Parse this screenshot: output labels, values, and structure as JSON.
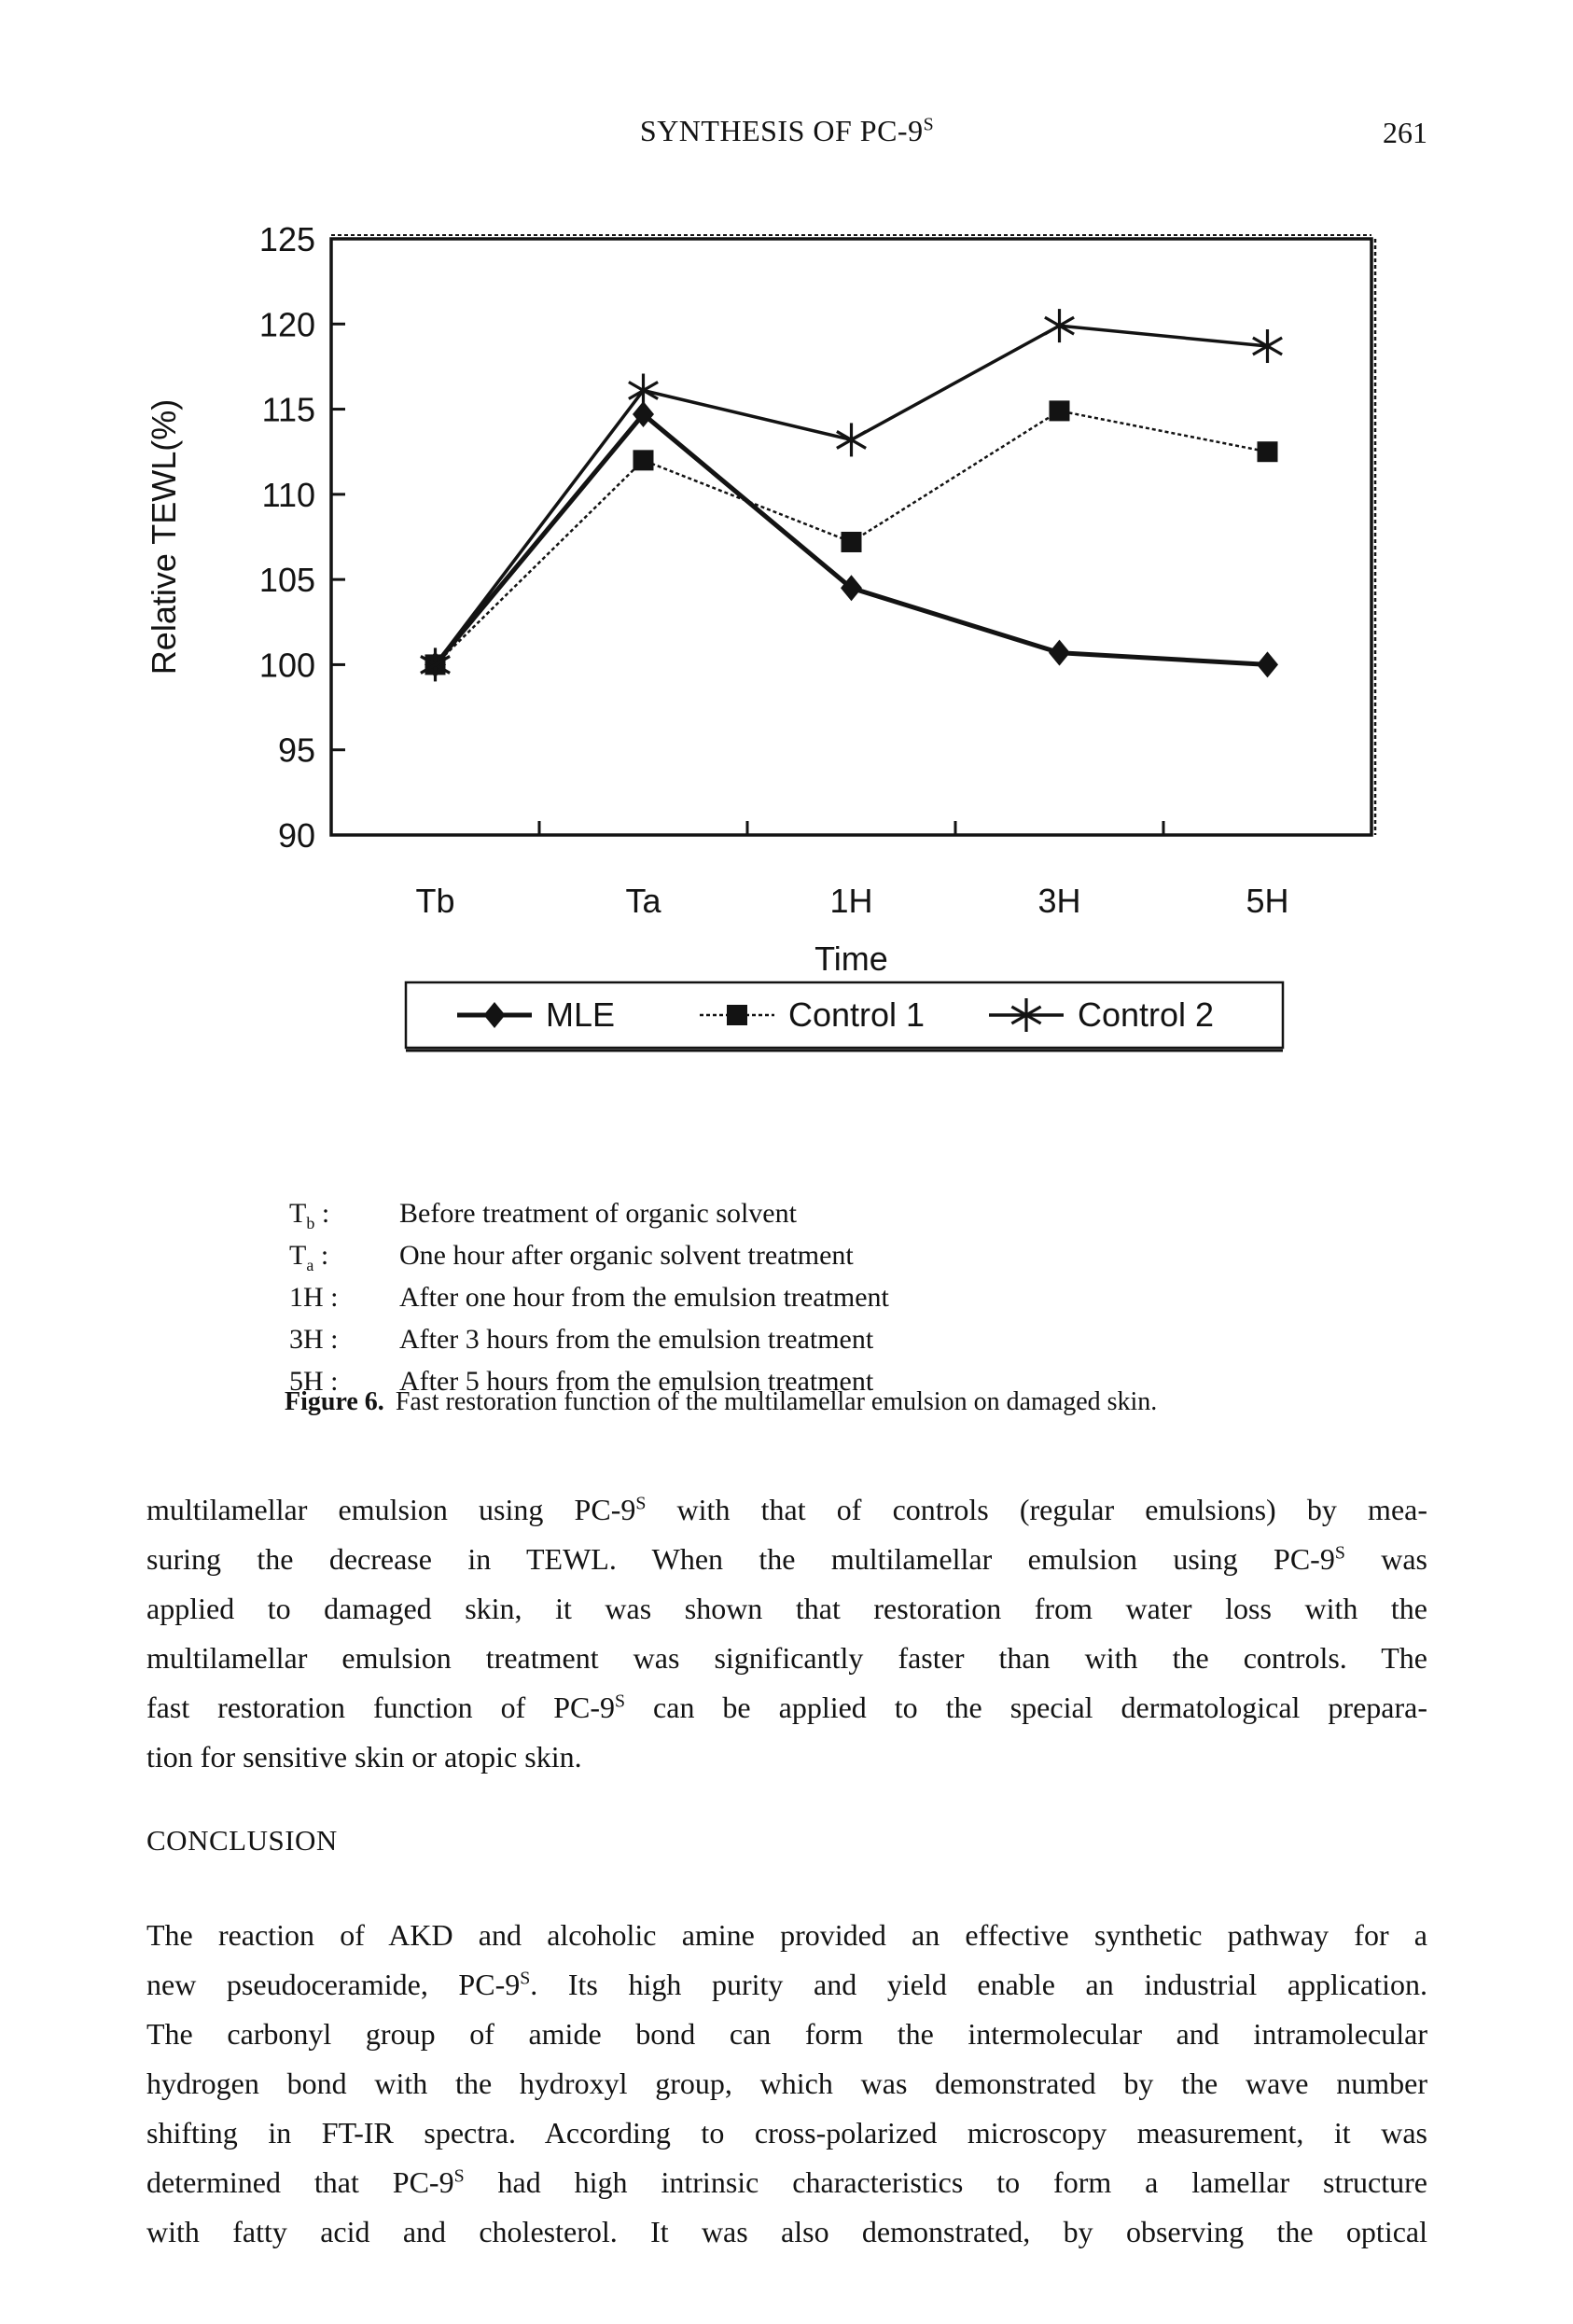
{
  "header": {
    "title_segments": [
      {
        "t": "SYNTHESIS OF PC-9"
      },
      {
        "t": "S",
        "sup": true
      }
    ],
    "page_number": "261"
  },
  "chart_data": {
    "type": "line",
    "categories": [
      "Tb",
      "Ta",
      "1H",
      "3H",
      "5H"
    ],
    "series": [
      {
        "name": "MLE",
        "marker": "diamond",
        "values": [
          100,
          114.7,
          104.5,
          100.7,
          100
        ]
      },
      {
        "name": "Control 1",
        "marker": "square",
        "values": [
          100,
          112.0,
          107.2,
          114.9,
          112.5
        ]
      },
      {
        "name": "Control 2",
        "marker": "asterisk",
        "values": [
          100,
          116.1,
          113.2,
          119.9,
          118.7
        ]
      }
    ],
    "title": "",
    "xlabel": "Time",
    "ylabel": "Relative TEWL(%)",
    "ylim": [
      90,
      125
    ],
    "ytick_step": 5,
    "grid": false,
    "legend_position": "bottom",
    "ink_color": "#131313",
    "background_color": "#ffffff"
  },
  "figure_notes": {
    "items": [
      {
        "term": [
          {
            "t": "T"
          },
          {
            "t": "b",
            "sub": true
          },
          {
            "t": " :"
          }
        ],
        "def": "Before treatment of organic solvent"
      },
      {
        "term": [
          {
            "t": "T"
          },
          {
            "t": "a",
            "sub": true
          },
          {
            "t": " :"
          }
        ],
        "def": "One hour after organic solvent treatment"
      },
      {
        "term": [
          {
            "t": "1H :"
          }
        ],
        "def": "After one hour from the emulsion treatment"
      },
      {
        "term": [
          {
            "t": "3H :"
          }
        ],
        "def": "After 3 hours from the emulsion treatment"
      },
      {
        "term": [
          {
            "t": "5H :"
          }
        ],
        "def": "After 5 hours from the emulsion treatment"
      }
    ],
    "caption_label": "Figure 6.",
    "caption_text": "Fast restoration function of the multilamellar emulsion on damaged skin."
  },
  "body": {
    "paragraph1_lines": [
      [
        {
          "t": "multilamellar emulsion using PC-9"
        },
        {
          "t": "S",
          "sup": true
        },
        {
          "t": " with that of controls (regular emulsions) by mea-"
        }
      ],
      [
        {
          "t": "suring the decrease in TEWL. When the multilamellar emulsion using PC-9"
        },
        {
          "t": "S",
          "sup": true
        },
        {
          "t": " was"
        }
      ],
      [
        {
          "t": "applied to damaged skin, it was shown that restoration from water loss with the"
        }
      ],
      [
        {
          "t": "multilamellar emulsion treatment was significantly faster than with the controls. The"
        }
      ],
      [
        {
          "t": "fast restoration function of PC-9"
        },
        {
          "t": "S",
          "sup": true
        },
        {
          "t": " can be applied to the special dermatological prepara-"
        }
      ],
      [
        {
          "t": "tion for sensitive skin or atopic skin."
        }
      ]
    ],
    "conclusion_heading": "CONCLUSION",
    "conclusion_lines": [
      [
        {
          "t": "The reaction of AKD and alcoholic amine provided an effective synthetic pathway for a"
        }
      ],
      [
        {
          "t": "new pseudoceramide, PC-9"
        },
        {
          "t": "S",
          "sup": true
        },
        {
          "t": ". Its high purity and yield enable an industrial application."
        }
      ],
      [
        {
          "t": "The carbonyl group of amide bond can form the intermolecular and intramolecular"
        }
      ],
      [
        {
          "t": "hydrogen bond with the hydroxyl group, which was demonstrated by the wave number"
        }
      ],
      [
        {
          "t": "shifting in FT-IR spectra. According to cross-polarized microscopy measurement, it was"
        }
      ],
      [
        {
          "t": "determined that PC-9"
        },
        {
          "t": "S",
          "sup": true
        },
        {
          "t": " had high intrinsic characteristics to form a lamellar structure"
        }
      ],
      [
        {
          "t": "with fatty acid and cholesterol. It was also demonstrated, by observing the optical"
        }
      ]
    ]
  }
}
